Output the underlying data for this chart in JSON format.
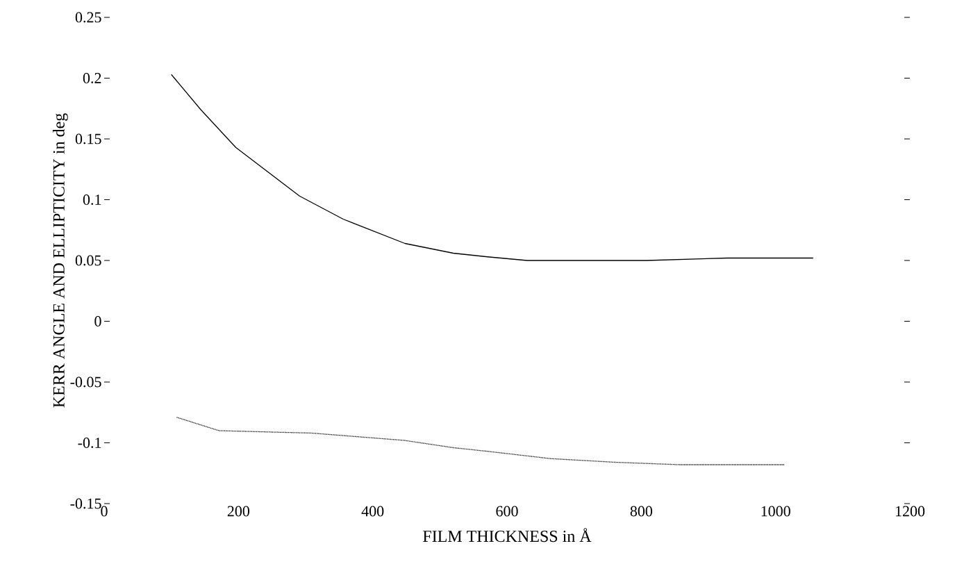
{
  "chart_data": {
    "type": "line",
    "xlabel": "FILM THICKNESS in Å",
    "ylabel": "KERR ANGLE AND ELLIPTICITY in deg",
    "xlim": [
      0,
      1200
    ],
    "ylim": [
      -0.15,
      0.25
    ],
    "xticks": [
      0,
      200,
      400,
      600,
      800,
      1000,
      1200
    ],
    "yticks": [
      -0.15,
      -0.1,
      -0.05,
      0,
      0.05,
      0.1,
      0.15,
      0.2,
      0.25
    ],
    "series": [
      {
        "color": "#000000",
        "line_style": "solid",
        "x": [
          100,
          144,
          196,
          291,
          356,
          448,
          520,
          571,
          630,
          808,
          928,
          1056
        ],
        "values": [
          0.203,
          0.174,
          0.143,
          0.103,
          0.084,
          0.064,
          0.056,
          0.053,
          0.05,
          0.05,
          0.052,
          0.052
        ]
      },
      {
        "color": "#000000",
        "line_style": "dotted",
        "x": [
          108,
          171,
          309,
          447,
          520,
          571,
          665,
          761,
          857,
          1013
        ],
        "values": [
          -0.079,
          -0.09,
          -0.092,
          -0.098,
          -0.104,
          -0.107,
          -0.113,
          -0.116,
          -0.118,
          -0.118
        ]
      }
    ]
  }
}
